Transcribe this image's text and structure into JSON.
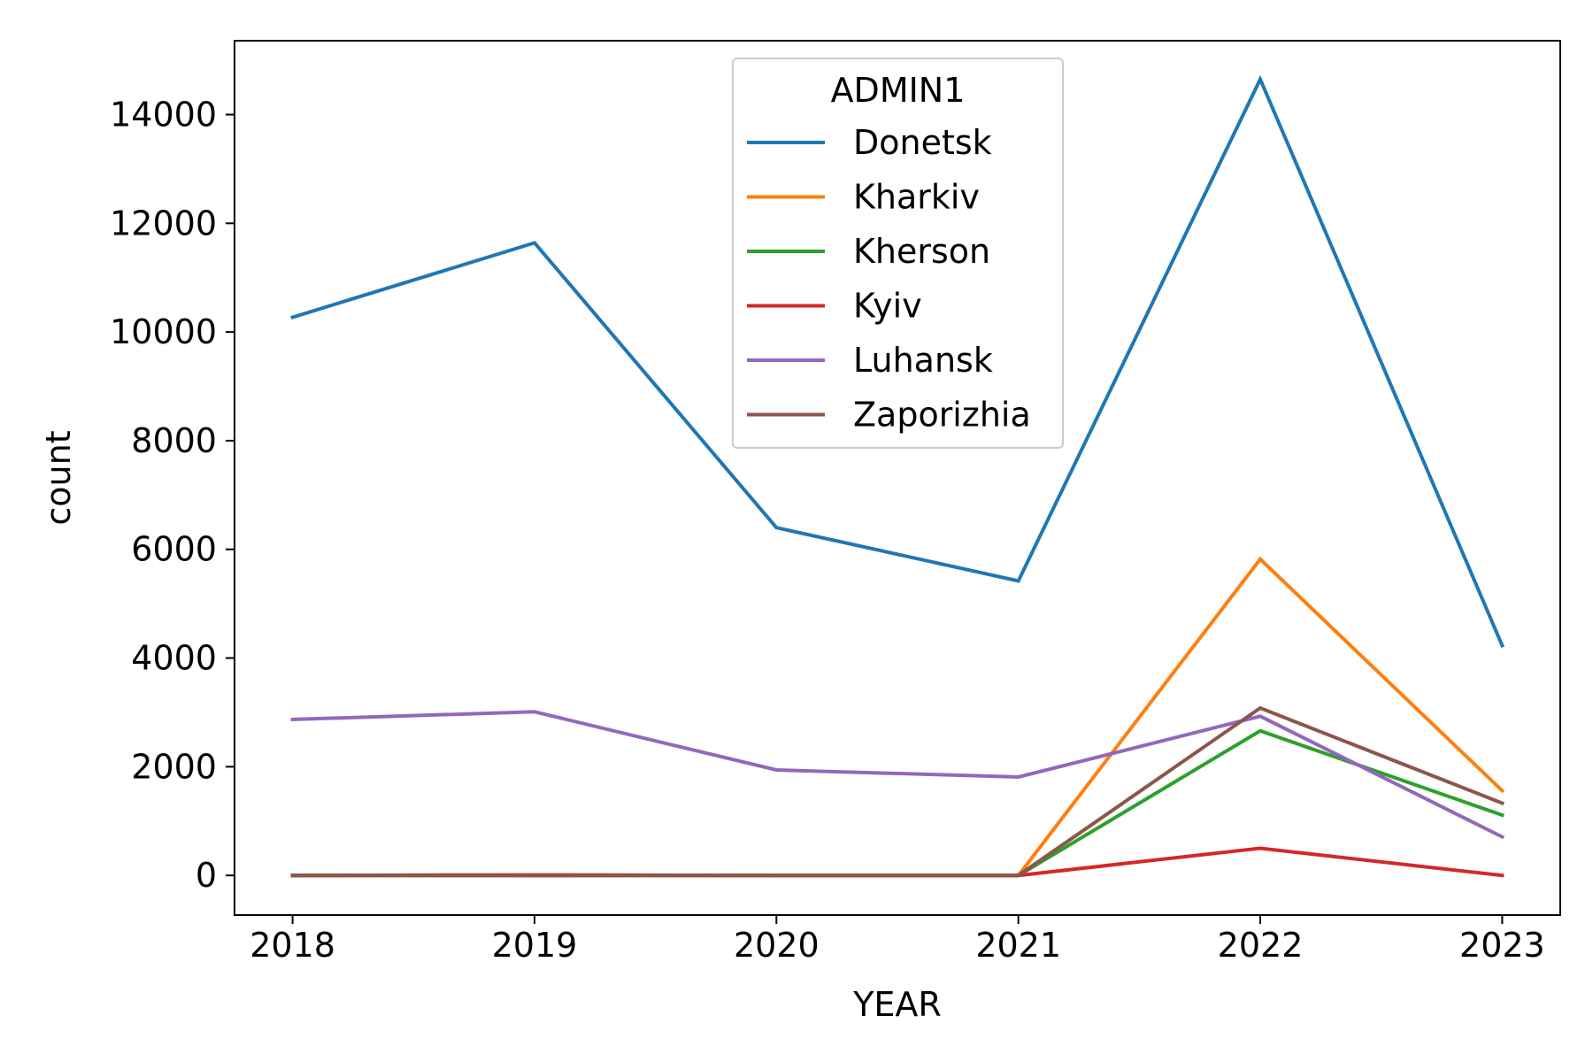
{
  "chart_data": {
    "type": "line",
    "title": "",
    "xlabel": "YEAR",
    "ylabel": "count",
    "x": [
      "2018",
      "2019",
      "2020",
      "2021",
      "2022",
      "2023"
    ],
    "xlim": [
      2017.76,
      2023.24
    ],
    "ylim": [
      -730,
      15360
    ],
    "yticks": [
      0,
      2000,
      4000,
      6000,
      8000,
      10000,
      12000,
      14000
    ],
    "legend": {
      "title": "ADMIN1",
      "position": "upper-center"
    },
    "grid": false,
    "series": [
      {
        "name": "Donetsk",
        "color": "#1f77b4",
        "values": [
          10270,
          11640,
          6400,
          5420,
          14650,
          4230
        ]
      },
      {
        "name": "Kharkiv",
        "color": "#ff7f0e",
        "values": [
          0,
          10,
          0,
          0,
          5820,
          1560
        ]
      },
      {
        "name": "Kherson",
        "color": "#2ca02c",
        "values": [
          0,
          0,
          0,
          0,
          2660,
          1110
        ]
      },
      {
        "name": "Kyiv",
        "color": "#d62728",
        "values": [
          0,
          0,
          0,
          0,
          500,
          0
        ]
      },
      {
        "name": "Luhansk",
        "color": "#9467bd",
        "values": [
          2870,
          3010,
          1940,
          1810,
          2930,
          710
        ]
      },
      {
        "name": "Zaporizhia",
        "color": "#8c564b",
        "values": [
          0,
          10,
          0,
          0,
          3080,
          1330
        ]
      }
    ]
  }
}
